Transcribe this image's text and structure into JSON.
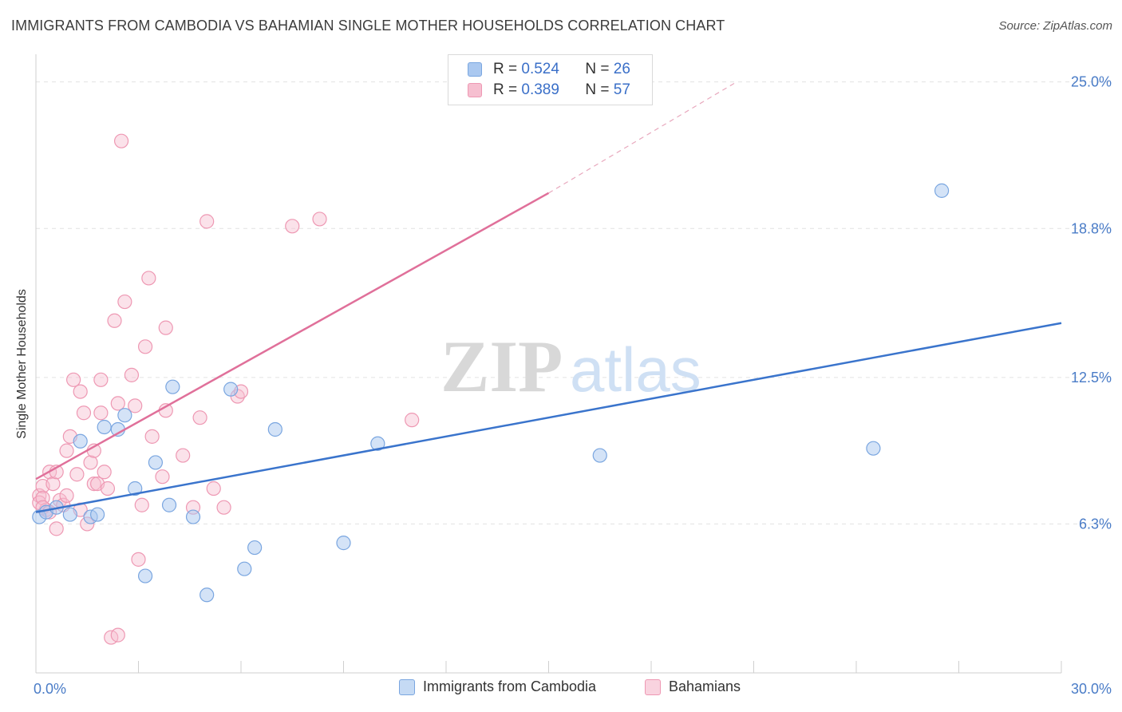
{
  "title": "IMMIGRANTS FROM CAMBODIA VS BAHAMIAN SINGLE MOTHER HOUSEHOLDS CORRELATION CHART",
  "source": "Source: ZipAtlas.com",
  "watermark": {
    "zip": "ZIP",
    "atlas": "atlas"
  },
  "legend": {
    "r_label": "R =",
    "n_label": "N =",
    "entries": [
      {
        "r": "0.524",
        "n": "26"
      },
      {
        "r": "0.389",
        "n": "57"
      }
    ]
  },
  "colors": {
    "blue_fill": "#aac8f0",
    "blue_stroke": "#7aa6e0",
    "blue_line": "#3a74cc",
    "pink_fill": "#f6bfd0",
    "pink_stroke": "#ee98b3",
    "pink_line": "#e0709a",
    "tick_label": "#4a7cc7",
    "grid": "#e2e2e2"
  },
  "chart_data": {
    "type": "scatter",
    "title": "IMMIGRANTS FROM CAMBODIA VS BAHAMIAN SINGLE MOTHER HOUSEHOLDS CORRELATION CHART",
    "xlabel": "",
    "ylabel": "Single Mother Households",
    "xlim": [
      0,
      30
    ],
    "ylim": [
      0,
      25.9
    ],
    "x_tick_labels": [
      {
        "value": 0,
        "label": "0.0%"
      },
      {
        "value": 30,
        "label": "30.0%"
      }
    ],
    "y_tick_labels": [
      {
        "value": 6.3,
        "label": "6.3%"
      },
      {
        "value": 12.5,
        "label": "12.5%"
      },
      {
        "value": 18.8,
        "label": "18.8%"
      },
      {
        "value": 25.0,
        "label": "25.0%"
      }
    ],
    "grid": true,
    "legend_position": "top-center",
    "series": [
      {
        "name": "Immigrants from Cambodia",
        "color": "#aac8f0",
        "r": 0.524,
        "n": 26,
        "trend": {
          "x": [
            0,
            30
          ],
          "y": [
            6.8,
            14.8
          ],
          "dashed_extension": false
        },
        "points": [
          [
            0.1,
            6.6
          ],
          [
            0.3,
            6.8
          ],
          [
            0.6,
            7.0
          ],
          [
            1.0,
            6.7
          ],
          [
            1.3,
            9.8
          ],
          [
            1.6,
            6.6
          ],
          [
            1.8,
            6.7
          ],
          [
            2.0,
            10.4
          ],
          [
            2.4,
            10.3
          ],
          [
            2.6,
            10.9
          ],
          [
            2.9,
            7.8
          ],
          [
            3.2,
            4.1
          ],
          [
            3.5,
            8.9
          ],
          [
            3.9,
            7.1
          ],
          [
            4.0,
            12.1
          ],
          [
            4.6,
            6.6
          ],
          [
            5.0,
            3.3
          ],
          [
            5.7,
            12.0
          ],
          [
            6.1,
            4.4
          ],
          [
            6.4,
            5.3
          ],
          [
            7.0,
            10.3
          ],
          [
            9.0,
            5.5
          ],
          [
            10.0,
            9.7
          ],
          [
            16.5,
            9.2
          ],
          [
            24.5,
            9.5
          ],
          [
            26.5,
            20.4
          ]
        ]
      },
      {
        "name": "Bahamians",
        "color": "#f6bfd0",
        "r": 0.389,
        "n": 57,
        "trend": {
          "x": [
            0,
            15
          ],
          "y": [
            8.2,
            20.3
          ],
          "dashed_extension": true,
          "dashed_to": [
            20.5,
            25.0
          ]
        },
        "points": [
          [
            0.1,
            7.5
          ],
          [
            0.1,
            7.2
          ],
          [
            0.2,
            7.9
          ],
          [
            0.2,
            7.4
          ],
          [
            0.3,
            6.9
          ],
          [
            0.4,
            8.5
          ],
          [
            0.5,
            8.0
          ],
          [
            0.6,
            8.5
          ],
          [
            0.6,
            6.1
          ],
          [
            0.7,
            7.3
          ],
          [
            0.8,
            7.1
          ],
          [
            0.9,
            7.5
          ],
          [
            0.9,
            9.4
          ],
          [
            1.0,
            10.0
          ],
          [
            1.1,
            12.4
          ],
          [
            1.2,
            8.4
          ],
          [
            1.3,
            11.9
          ],
          [
            1.3,
            6.9
          ],
          [
            1.4,
            11.0
          ],
          [
            1.5,
            6.3
          ],
          [
            1.6,
            8.9
          ],
          [
            1.7,
            9.4
          ],
          [
            1.7,
            8.0
          ],
          [
            1.8,
            8.0
          ],
          [
            1.9,
            12.4
          ],
          [
            1.9,
            11.0
          ],
          [
            2.0,
            8.5
          ],
          [
            2.1,
            7.8
          ],
          [
            2.2,
            1.5
          ],
          [
            2.3,
            14.9
          ],
          [
            2.4,
            11.4
          ],
          [
            2.4,
            1.6
          ],
          [
            2.5,
            22.5
          ],
          [
            2.6,
            15.7
          ],
          [
            2.8,
            12.6
          ],
          [
            2.9,
            11.3
          ],
          [
            3.0,
            4.8
          ],
          [
            3.1,
            7.1
          ],
          [
            3.2,
            13.8
          ],
          [
            3.3,
            16.7
          ],
          [
            3.4,
            10.0
          ],
          [
            3.7,
            8.3
          ],
          [
            3.8,
            14.6
          ],
          [
            3.8,
            11.1
          ],
          [
            4.3,
            9.2
          ],
          [
            4.6,
            7.0
          ],
          [
            4.8,
            10.8
          ],
          [
            5.0,
            19.1
          ],
          [
            5.2,
            7.8
          ],
          [
            5.5,
            7.0
          ],
          [
            5.9,
            11.7
          ],
          [
            6.0,
            11.9
          ],
          [
            7.5,
            18.9
          ],
          [
            8.3,
            19.2
          ],
          [
            11.0,
            10.7
          ],
          [
            0.2,
            7.0
          ],
          [
            0.4,
            6.8
          ]
        ]
      }
    ]
  },
  "bottom_legend": [
    "Immigrants from Cambodia",
    "Bahamians"
  ]
}
